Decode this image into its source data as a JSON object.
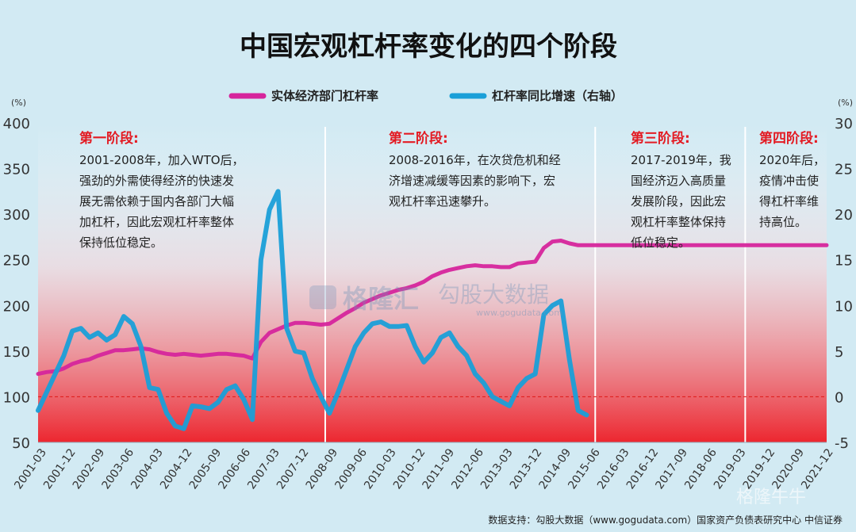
{
  "chart_data": {
    "type": "line",
    "title": "中国宏观杠杆率变化的四个阶段",
    "y_unit_left": "(%)",
    "y_unit_right": "(%)",
    "ylim_left": [
      50,
      400
    ],
    "yticks_left": [
      50,
      100,
      150,
      200,
      250,
      300,
      350,
      400
    ],
    "ylim_right": [
      -5,
      30
    ],
    "yticks_right": [
      -5,
      0,
      5,
      10,
      15,
      20,
      25,
      30
    ],
    "x_tick_labels": [
      "2001-03",
      "2001-12",
      "2002-09",
      "2003-06",
      "2004-03",
      "2004-12",
      "2005-09",
      "2006-06",
      "2007-03",
      "2007-12",
      "2008-09",
      "2009-06",
      "2010-03",
      "2010-12",
      "2011-09",
      "2012-06",
      "2013-03",
      "2013-12",
      "2014-09",
      "2015-06",
      "2016-03",
      "2016-12",
      "2017-09",
      "2018-06",
      "2019-03",
      "2019-12",
      "2020-09",
      "2021-12"
    ],
    "legend": [
      {
        "label": "实体经济部门杠杆率",
        "color": "#d6259c"
      },
      {
        "label": "杠杆率同比增速（右轴）",
        "color": "#1a9fd8"
      }
    ],
    "series": [
      {
        "name": "实体经济部门杠杆率",
        "axis": "left",
        "color": "#d6259c",
        "x": [
          0,
          2,
          4,
          6,
          8,
          10,
          12,
          14,
          16,
          18,
          20,
          22,
          24,
          26,
          28,
          30,
          32,
          34,
          36,
          38,
          40,
          42,
          44,
          46,
          48,
          50,
          52,
          54,
          56,
          58,
          60,
          62,
          64,
          66,
          68,
          70,
          72,
          74,
          76,
          78,
          80,
          82,
          84,
          86,
          88,
          90,
          92,
          94,
          96,
          98,
          100,
          102,
          104,
          106,
          108,
          110,
          112,
          114,
          116,
          118,
          120,
          122,
          124,
          126,
          128,
          130,
          132,
          134,
          136,
          138,
          140,
          142,
          144,
          146,
          148,
          150,
          152,
          154,
          156,
          158,
          160,
          162,
          164,
          166,
          168,
          170,
          172,
          174,
          176,
          178,
          180,
          182,
          184
        ],
        "values": [
          125,
          127,
          128,
          131,
          136,
          139,
          141,
          145,
          148,
          151,
          151,
          152,
          153,
          152,
          149,
          147,
          146,
          147,
          146,
          145,
          146,
          147,
          147,
          146,
          145,
          142,
          160,
          170,
          174,
          178,
          181,
          181,
          180,
          179,
          180,
          186,
          192,
          197,
          203,
          207,
          211,
          214,
          217,
          219,
          222,
          226,
          232,
          236,
          239,
          241,
          243,
          244,
          243,
          243,
          242,
          242,
          246,
          247,
          248,
          263,
          270,
          271,
          268,
          266,
          266,
          266,
          266,
          266,
          266,
          266,
          266,
          266,
          266,
          266,
          266,
          266,
          266,
          266,
          266,
          266,
          266,
          266,
          266,
          266,
          266,
          266,
          266,
          266,
          266,
          266,
          266,
          266,
          266
        ]
      },
      {
        "name": "杠杆率同比增速（右轴）",
        "axis": "right",
        "color": "#1a9fd8",
        "x": [
          0,
          2,
          4,
          6,
          8,
          10,
          12,
          14,
          16,
          18,
          20,
          22,
          24,
          26,
          28,
          30,
          32,
          34,
          36,
          38,
          40,
          42,
          44,
          46,
          48,
          50,
          52,
          54,
          56,
          58,
          60,
          62,
          64,
          66,
          68,
          70,
          72,
          74,
          76,
          78,
          80,
          82,
          84,
          86,
          88,
          90,
          92,
          94,
          96,
          98,
          100,
          102,
          104,
          106,
          108,
          110,
          112,
          114,
          116,
          118,
          120,
          122,
          124,
          126,
          128
        ],
        "values": [
          -1.5,
          0.5,
          2.5,
          4.5,
          7.2,
          7.5,
          6.5,
          7.0,
          6.2,
          6.8,
          8.8,
          8.0,
          5.5,
          1.0,
          0.8,
          -1.8,
          -3.2,
          -3.5,
          -1.0,
          -1.1,
          -1.3,
          -0.6,
          0.8,
          1.2,
          -0.3,
          -2.5,
          15.0,
          20.5,
          22.5,
          7.5,
          5.0,
          4.8,
          2.0,
          0.0,
          -1.8,
          0.5,
          3.0,
          5.5,
          7.0,
          8.0,
          8.2,
          7.7,
          7.7,
          7.8,
          5.5,
          3.8,
          4.8,
          6.5,
          7.0,
          5.5,
          4.5,
          2.5,
          1.5,
          0.0,
          -0.5,
          -1.0,
          1.0,
          2.0,
          2.5,
          9.0,
          10.0,
          10.5,
          4.0,
          -1.5,
          -2.0
        ]
      }
    ],
    "reference_line": {
      "axis": "left",
      "value": 100,
      "color": "#e02020"
    },
    "stages": [
      {
        "title": "第一阶段:",
        "lines": [
          "2001-2008年，加入WTO后，",
          "强劲的外需使得经济的快速发",
          "展无需依赖于国内各部门大幅",
          "加杠杆，因此宏观杠杆率整体",
          "保持低位稳定。"
        ]
      },
      {
        "title": "第二阶段:",
        "lines": [
          "2008-2016年，在次贷危机和经",
          "济增速减缓等因素的影响下，宏",
          "观杠杆率迅速攀升。"
        ]
      },
      {
        "title": "第三阶段:",
        "lines": [
          "2017-2019年，我",
          "国经济迈入高质量",
          "发展阶段，因此宏",
          "观杠杆率整体保持",
          "低位稳定。"
        ]
      },
      {
        "title": "第四阶段:",
        "lines": [
          "2020年后，",
          "疫情冲击使",
          "得杠杆率维",
          "持高位。"
        ]
      }
    ],
    "watermarks": [
      "格隆汇",
      "勾股大数据",
      "www.gogudata.com",
      "格隆牛牛"
    ],
    "source": "数据支持：勾股大数据（www.gogudata.com）国家资产负债表研究中心 中信证券"
  }
}
